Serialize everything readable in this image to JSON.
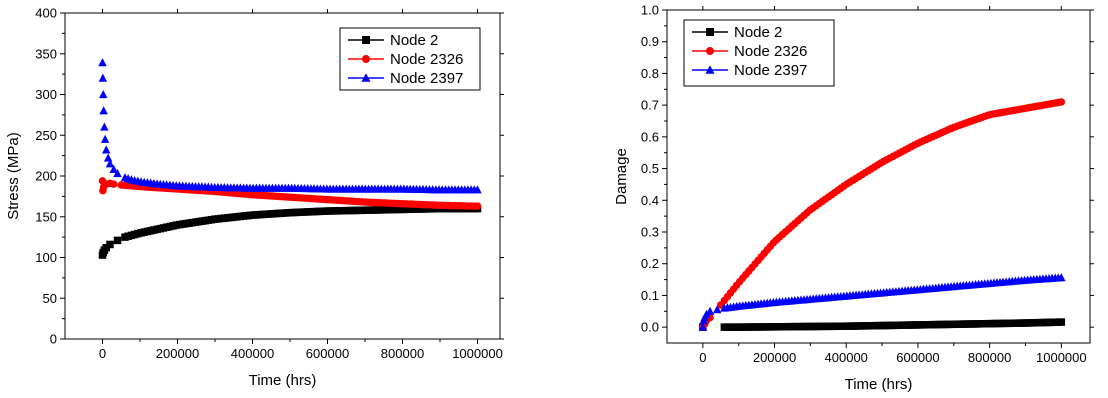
{
  "chart_data": [
    {
      "type": "scatter",
      "title": "",
      "xlabel": "Time (hrs)",
      "ylabel": "Stress (MPa)",
      "xlim": [
        -100000,
        1060000
      ],
      "ylim": [
        0,
        400
      ],
      "xticks": [
        0,
        200000,
        400000,
        600000,
        800000,
        1000000
      ],
      "yticks": [
        0,
        50,
        100,
        150,
        200,
        250,
        300,
        350,
        400
      ],
      "xtick_labels": [
        "0",
        "200000",
        "400000",
        "600000",
        "800000",
        "1000000"
      ],
      "ytick_labels": [
        "0",
        "50",
        "100",
        "150",
        "200",
        "250",
        "300",
        "350",
        "400"
      ],
      "legend_position": "top-right",
      "series": [
        {
          "name": "Node 2",
          "color": "#000000",
          "marker": "square",
          "x": [
            0,
            2000,
            5000,
            10000,
            20000,
            40000,
            60000,
            100000,
            150000,
            200000,
            300000,
            400000,
            500000,
            600000,
            700000,
            800000,
            900000,
            1000000
          ],
          "y": [
            103,
            106,
            109,
            112,
            116,
            121,
            125,
            130,
            135,
            140,
            147,
            152,
            155,
            157,
            158,
            159,
            160,
            160
          ]
        },
        {
          "name": "Node 2326",
          "color": "#ff0000",
          "marker": "circle",
          "x": [
            0,
            1000,
            3000,
            5000,
            10000,
            20000,
            30000,
            50000,
            100000,
            200000,
            300000,
            400000,
            500000,
            600000,
            700000,
            800000,
            900000,
            1000000
          ],
          "y": [
            194,
            182,
            186,
            189,
            190,
            191,
            190,
            189,
            187,
            184,
            181,
            177,
            174,
            171,
            168,
            166,
            164,
            163
          ]
        },
        {
          "name": "Node 2397",
          "color": "#0000ff",
          "marker": "triangle",
          "x": [
            0,
            1000,
            2000,
            3000,
            5000,
            7000,
            10000,
            15000,
            20000,
            30000,
            40000,
            60000,
            80000,
            100000,
            150000,
            200000,
            300000,
            400000,
            500000,
            600000,
            700000,
            800000,
            900000,
            1000000
          ],
          "y": [
            339,
            320,
            300,
            280,
            260,
            245,
            232,
            222,
            215,
            208,
            203,
            198,
            195,
            193,
            190,
            188,
            186,
            185,
            185,
            184,
            184,
            184,
            183,
            183
          ]
        }
      ]
    },
    {
      "type": "scatter",
      "title": "",
      "xlabel": "Time (hrs)",
      "ylabel": "Damage",
      "xlim": [
        -100000,
        1080000
      ],
      "ylim": [
        -0.05,
        1.0
      ],
      "xticks": [
        0,
        200000,
        400000,
        600000,
        800000,
        1000000
      ],
      "yticks": [
        0.0,
        0.1,
        0.2,
        0.3,
        0.4,
        0.5,
        0.6,
        0.7,
        0.8,
        0.9,
        1.0
      ],
      "xtick_labels": [
        "0",
        "200000",
        "400000",
        "600000",
        "800000",
        "1000000"
      ],
      "ytick_labels": [
        "0.0",
        "0.1",
        "0.2",
        "0.3",
        "0.4",
        "0.5",
        "0.6",
        "0.7",
        "0.8",
        "0.9",
        "1.0"
      ],
      "legend_position": "top-left",
      "series": [
        {
          "name": "Node 2",
          "color": "#000000",
          "marker": "square",
          "x": [
            0,
            100000,
            200000,
            300000,
            400000,
            500000,
            600000,
            700000,
            800000,
            900000,
            1000000
          ],
          "y": [
            0.0,
            0.0,
            0.001,
            0.002,
            0.003,
            0.005,
            0.007,
            0.009,
            0.011,
            0.013,
            0.016
          ]
        },
        {
          "name": "Node 2326",
          "color": "#ff0000",
          "marker": "circle",
          "x": [
            0,
            5000,
            10000,
            20000,
            50000,
            100000,
            200000,
            300000,
            400000,
            500000,
            600000,
            700000,
            800000,
            900000,
            1000000
          ],
          "y": [
            0.0,
            0.01,
            0.02,
            0.03,
            0.07,
            0.14,
            0.27,
            0.37,
            0.45,
            0.52,
            0.58,
            0.63,
            0.67,
            0.69,
            0.71
          ]
        },
        {
          "name": "Node 2397",
          "color": "#0000ff",
          "marker": "triangle",
          "x": [
            0,
            2000,
            5000,
            10000,
            20000,
            40000,
            60000,
            100000,
            200000,
            300000,
            400000,
            500000,
            600000,
            700000,
            800000,
            900000,
            1000000
          ],
          "y": [
            0.0,
            0.02,
            0.03,
            0.04,
            0.05,
            0.055,
            0.06,
            0.066,
            0.078,
            0.088,
            0.098,
            0.108,
            0.118,
            0.128,
            0.138,
            0.148,
            0.156
          ]
        }
      ]
    }
  ]
}
